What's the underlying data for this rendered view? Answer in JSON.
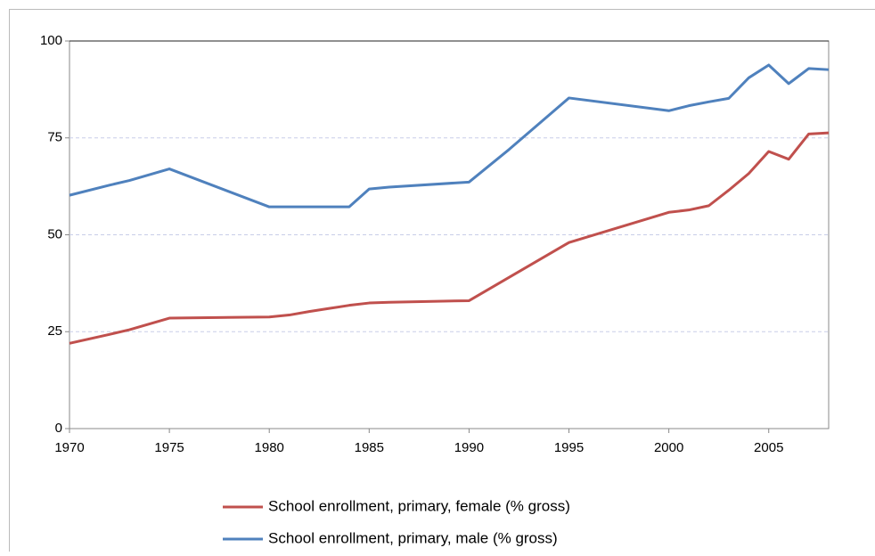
{
  "chart_data": {
    "type": "line",
    "x": [
      1970,
      1972,
      1973,
      1975,
      1980,
      1981,
      1982,
      1983,
      1984,
      1985,
      1986,
      1990,
      1992,
      1995,
      2000,
      2001,
      2002,
      2003,
      2004,
      2005,
      2006,
      2007,
      2008
    ],
    "series": [
      {
        "name": "School enrollment,  primary,  female (% gross)",
        "color": "#c0504d",
        "values": [
          22,
          24.3,
          25.5,
          28.5,
          28.8,
          29.3,
          30.2,
          31,
          31.8,
          32.4,
          32.6,
          33,
          39,
          48,
          55.8,
          56.4,
          57.5,
          61.5,
          65.8,
          71.5,
          69.5,
          76,
          76.3
        ]
      },
      {
        "name": "School enrollment,  primary,  male (% gross)",
        "color": "#4f81bd",
        "values": [
          60.2,
          62.8,
          64,
          67,
          57.2,
          57.2,
          57.2,
          57.2,
          57.2,
          61.8,
          62.3,
          63.6,
          72,
          85.3,
          82,
          83.3,
          84.3,
          85.2,
          90.5,
          93.8,
          89,
          92.9,
          92.6
        ]
      }
    ],
    "xlim": [
      1970,
      2008
    ],
    "xticks": [
      1970,
      1975,
      1980,
      1985,
      1990,
      1995,
      2000,
      2005
    ],
    "ylim": [
      0,
      100
    ],
    "yticks": [
      0,
      25,
      50,
      75,
      100
    ],
    "grid": true,
    "legend": "bottom"
  }
}
